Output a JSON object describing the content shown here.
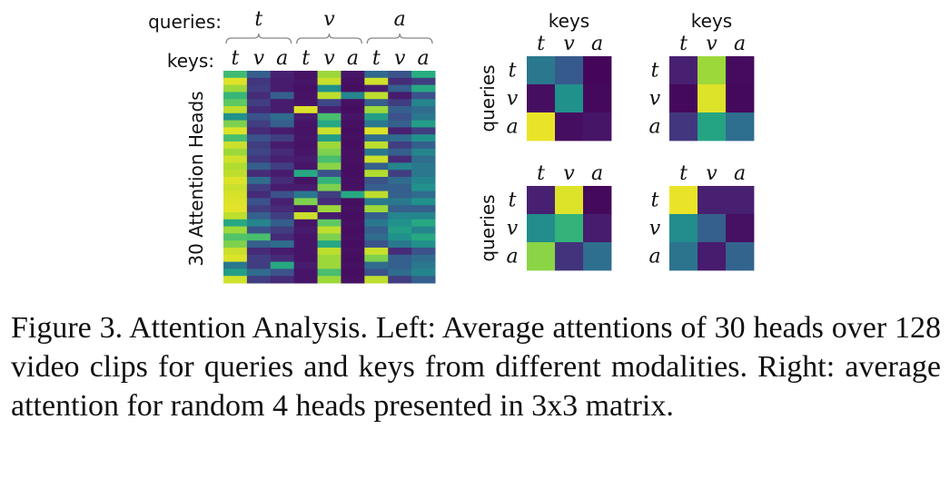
{
  "palette": [
    "#440154",
    "#482173",
    "#3b528b",
    "#2c728e",
    "#21918c",
    "#28ae80",
    "#5ec962",
    "#addc30",
    "#fde725"
  ],
  "chart_data": [
    {
      "type": "heatmap",
      "title": "",
      "group_label": "queries:",
      "col_label": "keys:",
      "ylabel": "30 Attention Heads",
      "query_groups": [
        "t",
        "v",
        "a"
      ],
      "key_labels": [
        "t",
        "v",
        "a",
        "t",
        "v",
        "a",
        "t",
        "v",
        "a"
      ],
      "value_range": [
        0,
        1
      ],
      "values": [
        [
          0.68,
          0.3,
          0.12,
          0.07,
          0.85,
          0.08,
          0.34,
          0.26,
          0.62
        ],
        [
          0.95,
          0.18,
          0.1,
          0.08,
          0.92,
          0.06,
          0.93,
          0.15,
          0.2
        ],
        [
          0.85,
          0.2,
          0.1,
          0.06,
          0.5,
          0.05,
          0.1,
          0.3,
          0.6
        ],
        [
          0.66,
          0.15,
          0.3,
          0.07,
          0.9,
          0.45,
          0.9,
          0.1,
          0.25
        ],
        [
          0.75,
          0.2,
          0.1,
          0.08,
          0.22,
          0.06,
          0.3,
          0.2,
          0.45
        ],
        [
          0.9,
          0.15,
          0.1,
          0.95,
          0.12,
          0.05,
          0.85,
          0.3,
          0.35
        ],
        [
          0.5,
          0.25,
          0.35,
          0.1,
          0.7,
          0.08,
          0.55,
          0.25,
          0.4
        ],
        [
          0.8,
          0.2,
          0.3,
          0.08,
          0.6,
          0.06,
          0.4,
          0.3,
          0.55
        ],
        [
          0.95,
          0.15,
          0.1,
          0.07,
          0.92,
          0.05,
          0.95,
          0.12,
          0.2
        ],
        [
          0.7,
          0.25,
          0.2,
          0.08,
          0.55,
          0.06,
          0.35,
          0.35,
          0.5
        ],
        [
          0.92,
          0.2,
          0.1,
          0.07,
          0.85,
          0.05,
          0.9,
          0.2,
          0.3
        ],
        [
          0.85,
          0.22,
          0.15,
          0.08,
          0.8,
          0.06,
          0.4,
          0.3,
          0.45
        ],
        [
          0.93,
          0.18,
          0.12,
          0.1,
          0.7,
          0.06,
          0.92,
          0.15,
          0.35
        ],
        [
          0.88,
          0.3,
          0.2,
          0.08,
          0.82,
          0.05,
          0.3,
          0.45,
          0.4
        ],
        [
          0.9,
          0.15,
          0.1,
          0.6,
          0.25,
          0.05,
          0.88,
          0.2,
          0.4
        ],
        [
          0.95,
          0.35,
          0.15,
          0.07,
          0.65,
          0.06,
          0.25,
          0.35,
          0.45
        ],
        [
          0.92,
          0.2,
          0.1,
          0.1,
          0.8,
          0.06,
          0.3,
          0.3,
          0.5
        ],
        [
          0.94,
          0.15,
          0.25,
          0.4,
          0.2,
          0.6,
          0.9,
          0.3,
          0.35
        ],
        [
          0.95,
          0.25,
          0.12,
          0.8,
          0.15,
          0.05,
          0.4,
          0.4,
          0.5
        ],
        [
          0.96,
          0.2,
          0.15,
          0.08,
          0.85,
          0.06,
          0.85,
          0.3,
          0.3
        ],
        [
          0.9,
          0.3,
          0.2,
          0.92,
          0.1,
          0.05,
          0.3,
          0.45,
          0.45
        ],
        [
          0.6,
          0.45,
          0.3,
          0.08,
          0.75,
          0.06,
          0.4,
          0.5,
          0.6
        ],
        [
          0.85,
          0.25,
          0.2,
          0.1,
          0.9,
          0.05,
          0.3,
          0.55,
          0.45
        ],
        [
          0.72,
          0.7,
          0.15,
          0.08,
          0.8,
          0.06,
          0.35,
          0.5,
          0.6
        ],
        [
          0.8,
          0.3,
          0.35,
          0.08,
          0.6,
          0.05,
          0.25,
          0.4,
          0.5
        ],
        [
          0.92,
          0.15,
          0.1,
          0.08,
          0.9,
          0.06,
          0.92,
          0.15,
          0.25
        ],
        [
          0.95,
          0.2,
          0.15,
          0.07,
          0.85,
          0.05,
          0.8,
          0.3,
          0.35
        ],
        [
          0.4,
          0.2,
          0.6,
          0.1,
          0.85,
          0.06,
          0.35,
          0.3,
          0.4
        ],
        [
          0.55,
          0.35,
          0.25,
          0.08,
          0.7,
          0.05,
          0.25,
          0.35,
          0.45
        ],
        [
          0.93,
          0.2,
          0.15,
          0.08,
          0.85,
          0.06,
          0.9,
          0.2,
          0.3
        ]
      ]
    },
    {
      "type": "heatmap",
      "xlabel": "keys",
      "ylabel": "queries",
      "x_ticks": [
        "t",
        "v",
        "a"
      ],
      "y_ticks": [
        "t",
        "v",
        "a"
      ],
      "value_range": [
        0,
        1
      ],
      "values": [
        [
          0.4,
          0.28,
          0.02
        ],
        [
          0.05,
          0.5,
          0.03
        ],
        [
          0.97,
          0.05,
          0.08
        ]
      ]
    },
    {
      "type": "heatmap",
      "xlabel": "keys",
      "ylabel": "",
      "x_ticks": [
        "t",
        "v",
        "a"
      ],
      "y_ticks": [
        "t",
        "v",
        "a"
      ],
      "value_range": [
        0,
        1
      ],
      "values": [
        [
          0.12,
          0.85,
          0.04
        ],
        [
          0.03,
          0.95,
          0.03
        ],
        [
          0.18,
          0.58,
          0.36
        ]
      ]
    },
    {
      "type": "heatmap",
      "xlabel": "",
      "ylabel": "queries",
      "x_ticks": [
        "t",
        "v",
        "a"
      ],
      "y_ticks": [
        "t",
        "v",
        "a"
      ],
      "value_range": [
        0,
        1
      ],
      "values": [
        [
          0.12,
          0.95,
          0.03
        ],
        [
          0.48,
          0.65,
          0.1
        ],
        [
          0.82,
          0.17,
          0.36
        ]
      ]
    },
    {
      "type": "heatmap",
      "xlabel": "",
      "ylabel": "",
      "x_ticks": [
        "t",
        "v",
        "a"
      ],
      "y_ticks": [
        "t",
        "v",
        "a"
      ],
      "value_range": [
        0,
        1
      ],
      "values": [
        [
          0.97,
          0.12,
          0.12
        ],
        [
          0.48,
          0.3,
          0.06
        ],
        [
          0.38,
          0.1,
          0.32
        ]
      ]
    }
  ],
  "caption": "Figure 3. Attention Analysis. Left: Average attentions of 30 heads over 128 video clips for queries and keys from different modalities. Right: average attention for random 4 heads presented in 3x3 matrix."
}
